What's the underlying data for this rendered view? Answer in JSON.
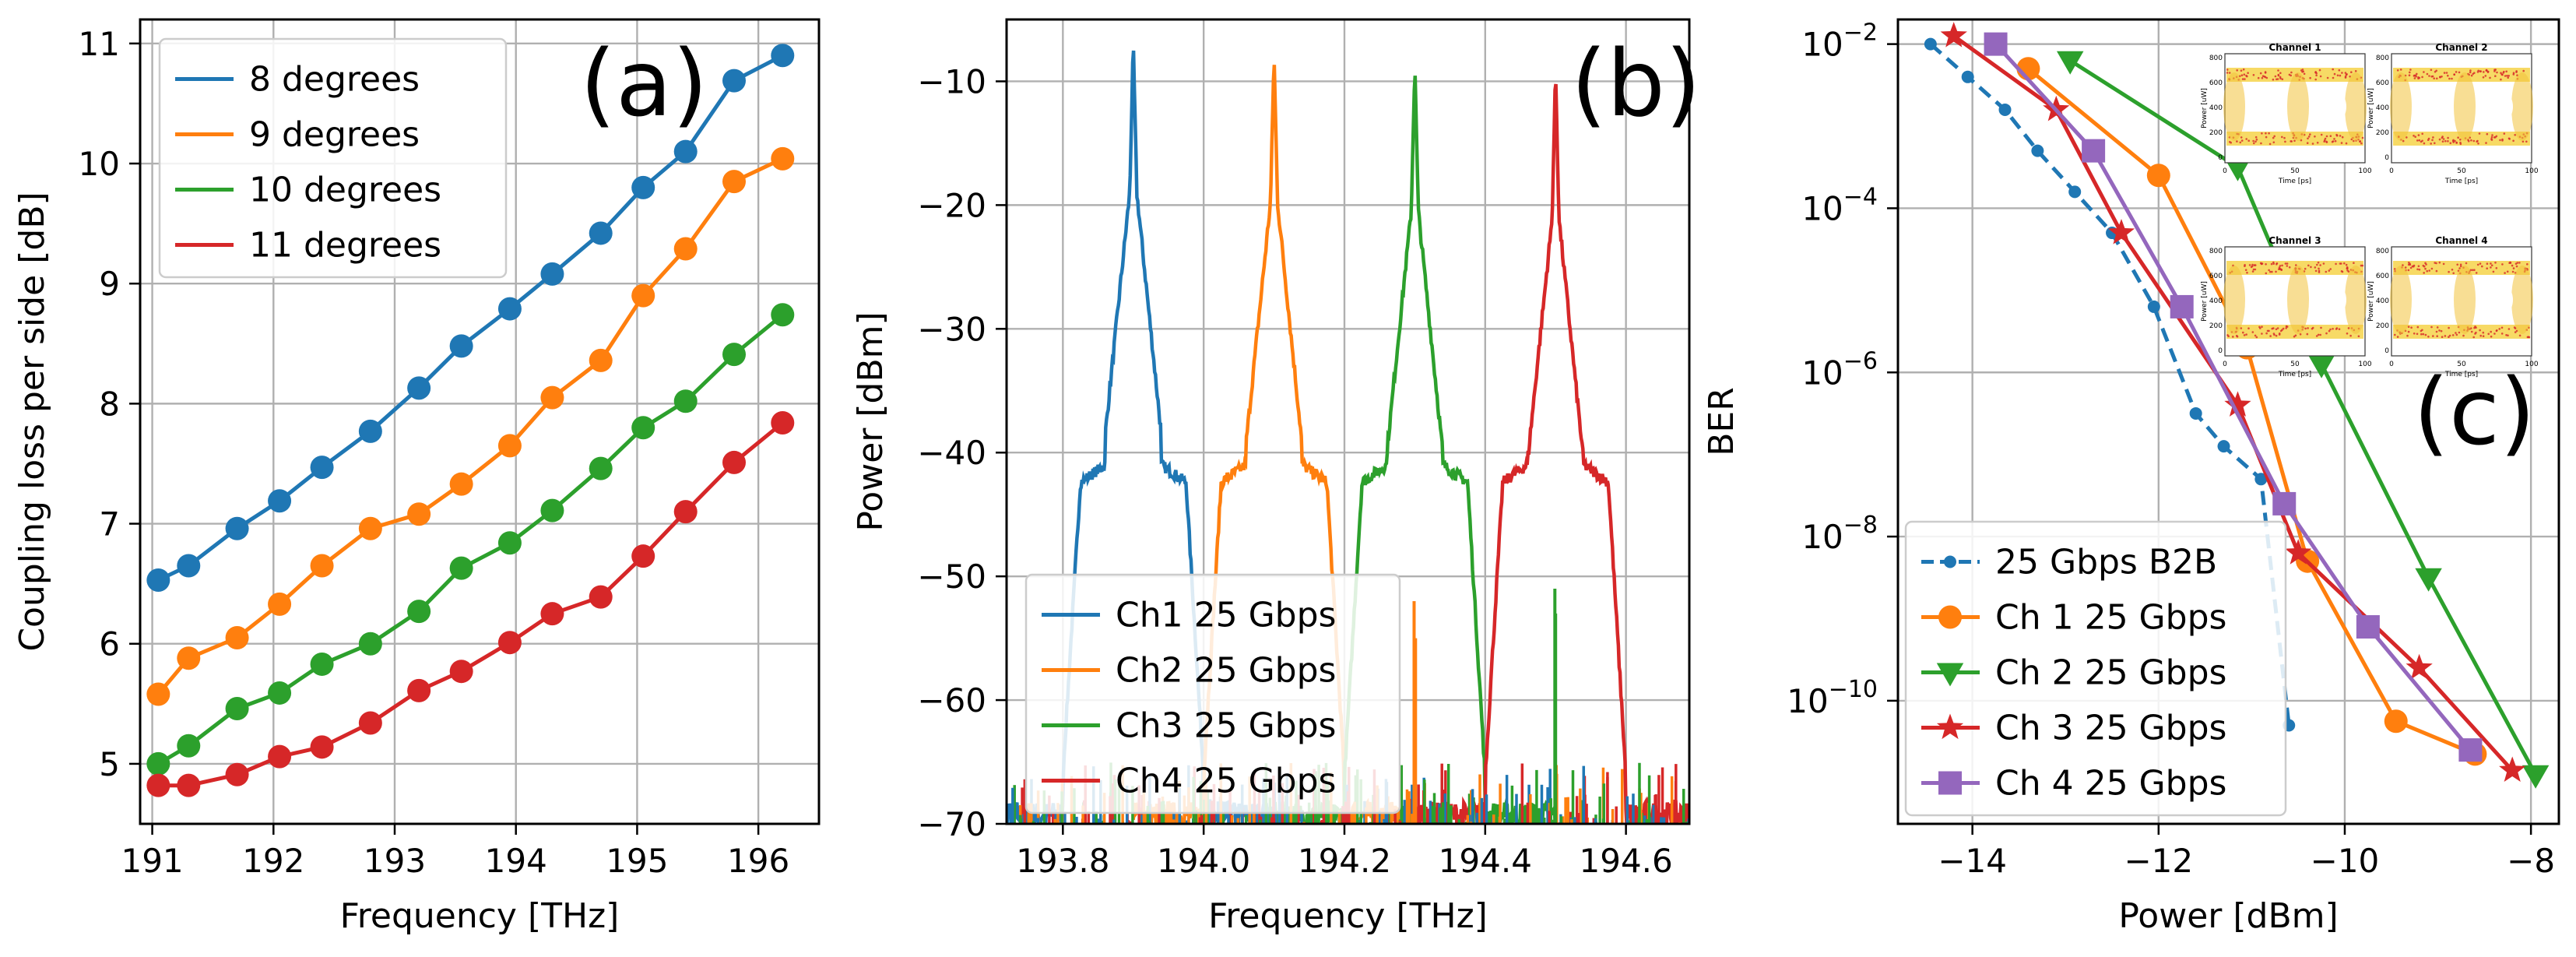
{
  "colors": {
    "blue": "#1f77b4",
    "orange": "#ff7f0e",
    "green": "#2ca02c",
    "red": "#d62728",
    "purple": "#9467bd"
  },
  "chart_data": [
    {
      "id": "a",
      "type": "line",
      "panel_label": "(a)",
      "xlabel": "Frequency [THz]",
      "ylabel": "Coupling loss per side [dB]",
      "xlim": [
        190.9,
        196.5
      ],
      "ylim": [
        4.5,
        11.2
      ],
      "xticks": [
        "191",
        "192",
        "193",
        "194",
        "195",
        "196"
      ],
      "yticks": [
        "5",
        "6",
        "7",
        "8",
        "9",
        "10",
        "11"
      ],
      "legend_position": "upper-left",
      "x": [
        191.05,
        191.3,
        191.7,
        192.05,
        192.4,
        192.8,
        193.2,
        193.55,
        193.95,
        194.3,
        194.7,
        195.05,
        195.4,
        195.8,
        196.2
      ],
      "series": [
        {
          "name": "8 degrees",
          "color": "#1f77b4",
          "values": [
            6.53,
            6.65,
            6.96,
            7.19,
            7.47,
            7.77,
            8.13,
            8.48,
            8.79,
            9.08,
            9.42,
            9.8,
            10.1,
            10.69,
            10.9
          ]
        },
        {
          "name": "9 degrees",
          "color": "#ff7f0e",
          "values": [
            5.58,
            5.88,
            6.05,
            6.33,
            6.65,
            6.96,
            7.08,
            7.33,
            7.65,
            8.05,
            8.36,
            8.9,
            9.29,
            9.85,
            10.04
          ]
        },
        {
          "name": "10 degrees",
          "color": "#2ca02c",
          "values": [
            5.0,
            5.15,
            5.46,
            5.59,
            5.83,
            6.0,
            6.27,
            6.63,
            6.84,
            7.11,
            7.46,
            7.8,
            8.02,
            8.41,
            8.74
          ]
        },
        {
          "name": "11 degrees",
          "color": "#d62728",
          "values": [
            4.82,
            4.82,
            4.91,
            5.06,
            5.14,
            5.34,
            5.61,
            5.77,
            6.01,
            6.25,
            6.39,
            6.73,
            7.1,
            7.51,
            7.84
          ]
        }
      ]
    },
    {
      "id": "b",
      "type": "line",
      "panel_label": "(b)",
      "xlabel": "Frequency [THz]",
      "ylabel": "Power [dBm]",
      "xlim": [
        193.72,
        194.69
      ],
      "ylim": [
        -70,
        -5
      ],
      "xticks": [
        "193.8",
        "194.0",
        "194.2",
        "194.4",
        "194.6"
      ],
      "yticks": [
        "−10",
        "−20",
        "−30",
        "−40",
        "−50",
        "−60",
        "−70"
      ],
      "legend_position": "lower-left",
      "series": [
        {
          "name": "Ch1 25 Gbps",
          "color": "#1f77b4",
          "center": 193.9,
          "peak": -7
        },
        {
          "name": "Ch2 25 Gbps",
          "color": "#ff7f0e",
          "center": 194.1,
          "peak": -7.8
        },
        {
          "name": "Ch3 25 Gbps",
          "color": "#2ca02c",
          "center": 194.3,
          "peak": -8.5
        },
        {
          "name": "Ch4 25 Gbps",
          "color": "#d62728",
          "center": 194.5,
          "peak": -9.2
        }
      ]
    },
    {
      "id": "c",
      "type": "line",
      "panel_label": "(c)",
      "xlabel": "Power [dBm]",
      "ylabel": "BER",
      "xscale": "linear",
      "yscale": "log",
      "xlim": [
        -14.8,
        -7.7
      ],
      "ylim_exp": [
        -11.5,
        -1.7
      ],
      "xticks": [
        "−14",
        "−12",
        "−10",
        "−8"
      ],
      "yticks_exp": [
        "−2",
        "−4",
        "−6",
        "−8",
        "−10"
      ],
      "ytick_base": "10",
      "legend_position": "lower-left",
      "series": [
        {
          "name": "25 Gbps B2B",
          "color": "#1f77b4",
          "marker": "dot",
          "dash": true,
          "x": [
            -14.45,
            -14.05,
            -13.65,
            -13.3,
            -12.9,
            -12.5,
            -12.05,
            -11.6,
            -11.3,
            -10.9,
            -10.6
          ],
          "logy": [
            -2.0,
            -2.4,
            -2.8,
            -3.3,
            -3.8,
            -4.3,
            -5.2,
            -6.5,
            -6.9,
            -7.3,
            -10.3
          ]
        },
        {
          "name": "Ch 1 25 Gbps",
          "color": "#ff7f0e",
          "marker": "circle",
          "x": [
            -13.4,
            -12,
            -11.05,
            -10.4,
            -9.45,
            -8.6
          ],
          "logy": [
            -2.3,
            -3.6,
            -5.7,
            -8.3,
            -10.25,
            -10.65
          ]
        },
        {
          "name": "Ch 2 25 Gbps",
          "color": "#2ca02c",
          "marker": "triangle",
          "x": [
            -12.95,
            -11.15,
            -10.25,
            -9.1,
            -7.95
          ],
          "logy": [
            -2.2,
            -3.5,
            -5.9,
            -8.5,
            -10.9
          ]
        },
        {
          "name": "Ch 3 25 Gbps",
          "color": "#d62728",
          "marker": "star",
          "x": [
            -14.2,
            -13.1,
            -12.4,
            -11.15,
            -10.5,
            -9.2,
            -8.2
          ],
          "logy": [
            -1.9,
            -2.8,
            -4.3,
            -6.4,
            -8.2,
            -9.6,
            -10.85
          ]
        },
        {
          "name": "Ch 4 25 Gbps",
          "color": "#9467bd",
          "marker": "square",
          "x": [
            -13.75,
            -12.7,
            -11.75,
            -10.65,
            -9.75,
            -8.65
          ],
          "logy": [
            -2.0,
            -3.3,
            -5.2,
            -7.6,
            -9.1,
            -10.6
          ]
        }
      ],
      "inset": {
        "panels": [
          {
            "title": "Channel 1"
          },
          {
            "title": "Channel 2"
          },
          {
            "title": "Channel 3"
          },
          {
            "title": "Channel 4"
          }
        ],
        "xlabel": "Time [ps]",
        "ylabel": "Power [uW]",
        "xticks": [
          "0",
          "50",
          "100"
        ],
        "yticks": [
          "800",
          "600",
          "400",
          "200",
          "0"
        ]
      }
    }
  ]
}
